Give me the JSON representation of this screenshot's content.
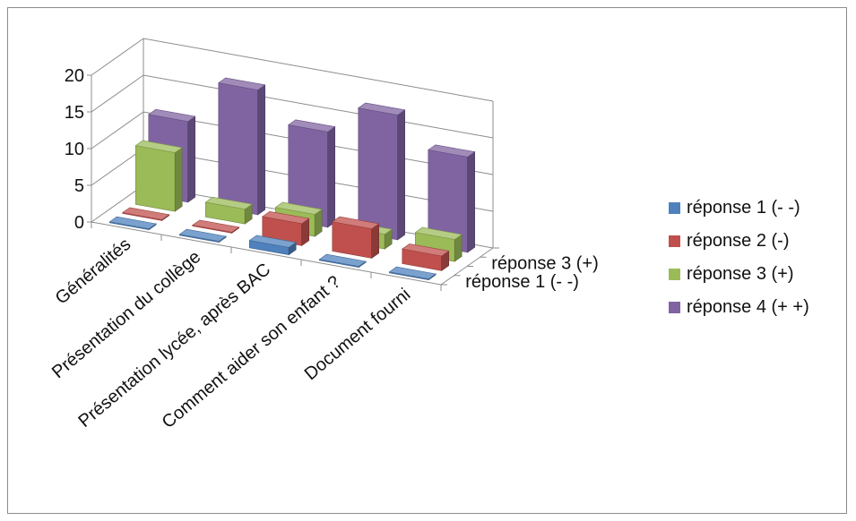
{
  "chart_data": {
    "type": "bar",
    "subtype": "3d-column",
    "title": "",
    "categories": [
      "Généralités",
      "Présentation du collège",
      "Présentation lycée, après BAC",
      "Comment aider son enfant ?",
      "Document fourni"
    ],
    "depth_axis_labels": [
      "réponse 1 (- -)",
      "réponse 3 (+)"
    ],
    "ylim": [
      0,
      20
    ],
    "yticks": [
      0,
      5,
      10,
      15,
      20
    ],
    "grid": true,
    "legend_position": "right",
    "series": [
      {
        "name": "réponse 1 (- -)",
        "color": "#4f81bd",
        "values": [
          0,
          0,
          1,
          0,
          0
        ]
      },
      {
        "name": "réponse 2 (-)",
        "color": "#c0504d",
        "values": [
          0,
          0,
          3,
          4,
          2
        ]
      },
      {
        "name": "réponse 3 (+)",
        "color": "#9bbb59",
        "values": [
          8,
          2,
          3,
          2,
          3
        ]
      },
      {
        "name": "réponse 4 (+ +)",
        "color": "#8064a2",
        "values": [
          11,
          17,
          13,
          17,
          13
        ]
      }
    ]
  }
}
